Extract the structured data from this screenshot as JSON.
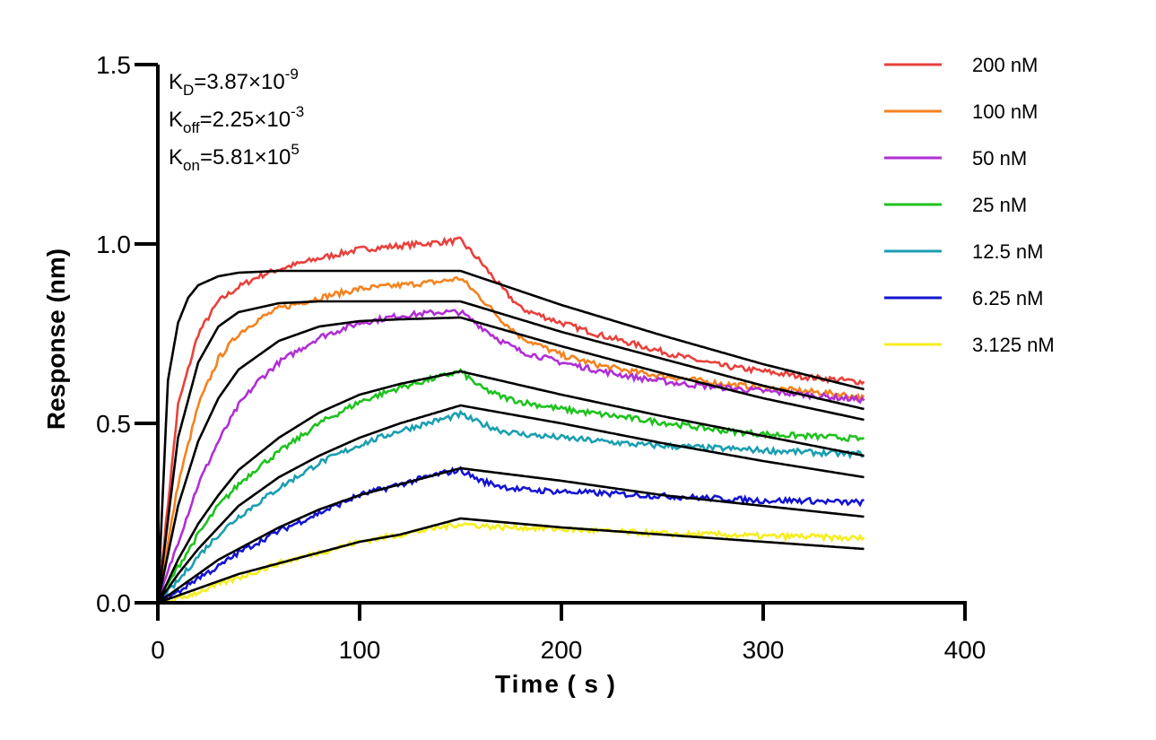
{
  "chart_data": {
    "type": "line",
    "title": "",
    "xlabel": "Time ( s )",
    "ylabel": "Response (nm)",
    "xlim": [
      0,
      400
    ],
    "ylim": [
      0,
      1.5
    ],
    "xticks": [
      "0",
      "100",
      "200",
      "300",
      "400"
    ],
    "yticks": [
      "0.0",
      "0.5",
      "1.0",
      "1.5"
    ],
    "grid": false,
    "legend_position": "top-right",
    "association_end_s": 150,
    "dissociation_end_s": 350,
    "kinetics": {
      "kd": {
        "label": "K",
        "sub": "D",
        "value": "=3.87×10",
        "exp": "-9"
      },
      "koff": {
        "label": "K",
        "sub": "off",
        "value": "=2.25×10",
        "exp": "-3"
      },
      "kon": {
        "label": "K",
        "sub": "on",
        "value": "=5.81×10",
        "exp": "5"
      }
    },
    "series": [
      {
        "name": "200 nM",
        "color": "#e8413c",
        "measured": {
          "x": [
            0,
            10,
            20,
            30,
            40,
            50,
            60,
            80,
            100,
            120,
            140,
            150,
            160,
            170,
            180,
            200,
            220,
            240,
            260,
            280,
            300,
            320,
            340,
            350
          ],
          "y": [
            0,
            0.55,
            0.75,
            0.84,
            0.88,
            0.91,
            0.93,
            0.96,
            0.985,
            0.995,
            1.005,
            1.01,
            0.95,
            0.88,
            0.82,
            0.78,
            0.745,
            0.715,
            0.685,
            0.66,
            0.645,
            0.63,
            0.62,
            0.615
          ]
        },
        "fit": {
          "x": [
            0,
            5,
            10,
            15,
            20,
            30,
            40,
            60,
            80,
            100,
            120,
            150,
            200,
            250,
            300,
            350
          ],
          "y": [
            0,
            0.62,
            0.78,
            0.85,
            0.885,
            0.91,
            0.92,
            0.925,
            0.925,
            0.925,
            0.925,
            0.925,
            0.83,
            0.745,
            0.665,
            0.595
          ]
        }
      },
      {
        "name": "100 nM",
        "color": "#f5821f",
        "measured": {
          "x": [
            0,
            10,
            20,
            30,
            40,
            50,
            60,
            80,
            100,
            120,
            140,
            150,
            160,
            170,
            180,
            200,
            220,
            240,
            260,
            280,
            300,
            320,
            340,
            350
          ],
          "y": [
            0,
            0.33,
            0.55,
            0.68,
            0.75,
            0.79,
            0.82,
            0.85,
            0.875,
            0.885,
            0.895,
            0.905,
            0.85,
            0.79,
            0.74,
            0.69,
            0.66,
            0.64,
            0.625,
            0.61,
            0.6,
            0.59,
            0.58,
            0.57
          ]
        },
        "fit": {
          "x": [
            0,
            10,
            20,
            30,
            40,
            60,
            80,
            100,
            120,
            150,
            200,
            250,
            300,
            350
          ],
          "y": [
            0,
            0.46,
            0.67,
            0.77,
            0.81,
            0.835,
            0.84,
            0.84,
            0.84,
            0.84,
            0.755,
            0.68,
            0.605,
            0.54
          ]
        }
      },
      {
        "name": "50 nM",
        "color": "#b02fd4",
        "measured": {
          "x": [
            0,
            10,
            20,
            30,
            40,
            50,
            60,
            80,
            100,
            120,
            140,
            150,
            160,
            170,
            180,
            200,
            220,
            240,
            260,
            280,
            300,
            320,
            340,
            350
          ],
          "y": [
            0,
            0.17,
            0.33,
            0.45,
            0.55,
            0.62,
            0.67,
            0.74,
            0.78,
            0.8,
            0.81,
            0.81,
            0.77,
            0.73,
            0.7,
            0.67,
            0.645,
            0.625,
            0.61,
            0.6,
            0.59,
            0.58,
            0.57,
            0.565
          ]
        },
        "fit": {
          "x": [
            0,
            10,
            20,
            30,
            40,
            60,
            80,
            100,
            120,
            150,
            200,
            250,
            300,
            350
          ],
          "y": [
            0,
            0.27,
            0.45,
            0.57,
            0.65,
            0.73,
            0.77,
            0.785,
            0.79,
            0.795,
            0.715,
            0.64,
            0.57,
            0.51
          ]
        }
      },
      {
        "name": "25 nM",
        "color": "#1ec21e",
        "measured": {
          "x": [
            0,
            10,
            20,
            30,
            40,
            50,
            60,
            80,
            100,
            120,
            140,
            150,
            160,
            170,
            180,
            200,
            220,
            240,
            260,
            280,
            300,
            320,
            340,
            350
          ],
          "y": [
            0,
            0.1,
            0.19,
            0.27,
            0.33,
            0.38,
            0.42,
            0.5,
            0.56,
            0.6,
            0.63,
            0.645,
            0.6,
            0.575,
            0.56,
            0.54,
            0.525,
            0.51,
            0.495,
            0.48,
            0.47,
            0.465,
            0.46,
            0.455
          ]
        },
        "fit": {
          "x": [
            0,
            10,
            20,
            30,
            40,
            60,
            80,
            100,
            120,
            150,
            200,
            250,
            300,
            350
          ],
          "y": [
            0,
            0.12,
            0.22,
            0.3,
            0.37,
            0.46,
            0.53,
            0.58,
            0.61,
            0.645,
            0.58,
            0.52,
            0.465,
            0.41
          ]
        }
      },
      {
        "name": "12.5 nM",
        "color": "#1a9fb0",
        "measured": {
          "x": [
            0,
            10,
            20,
            30,
            40,
            50,
            60,
            80,
            100,
            120,
            140,
            150,
            160,
            170,
            180,
            200,
            220,
            240,
            260,
            280,
            300,
            320,
            340,
            350
          ],
          "y": [
            0,
            0.06,
            0.13,
            0.19,
            0.24,
            0.28,
            0.32,
            0.39,
            0.44,
            0.48,
            0.51,
            0.525,
            0.5,
            0.48,
            0.47,
            0.46,
            0.45,
            0.44,
            0.435,
            0.43,
            0.425,
            0.42,
            0.415,
            0.415
          ]
        },
        "fit": {
          "x": [
            0,
            10,
            20,
            30,
            40,
            60,
            80,
            100,
            120,
            150,
            200,
            250,
            300,
            350
          ],
          "y": [
            0,
            0.08,
            0.15,
            0.21,
            0.27,
            0.35,
            0.41,
            0.46,
            0.5,
            0.55,
            0.5,
            0.445,
            0.395,
            0.35
          ]
        }
      },
      {
        "name": "6.25 nM",
        "color": "#1414d2",
        "measured": {
          "x": [
            0,
            10,
            20,
            30,
            40,
            50,
            60,
            80,
            100,
            120,
            140,
            150,
            160,
            170,
            180,
            200,
            220,
            240,
            260,
            280,
            300,
            320,
            340,
            350
          ],
          "y": [
            0,
            0.03,
            0.07,
            0.1,
            0.14,
            0.17,
            0.2,
            0.25,
            0.3,
            0.33,
            0.36,
            0.37,
            0.34,
            0.325,
            0.315,
            0.31,
            0.305,
            0.3,
            0.295,
            0.29,
            0.285,
            0.285,
            0.28,
            0.28
          ]
        },
        "fit": {
          "x": [
            0,
            10,
            20,
            30,
            40,
            60,
            80,
            100,
            120,
            150,
            200,
            250,
            300,
            350
          ],
          "y": [
            0,
            0.04,
            0.08,
            0.12,
            0.15,
            0.21,
            0.26,
            0.3,
            0.33,
            0.375,
            0.34,
            0.3,
            0.27,
            0.24
          ]
        }
      },
      {
        "name": "3.125 nM",
        "color": "#f5ee1e",
        "measured": {
          "x": [
            0,
            10,
            20,
            30,
            40,
            50,
            60,
            80,
            100,
            120,
            140,
            150,
            160,
            170,
            180,
            200,
            220,
            240,
            260,
            280,
            300,
            320,
            340,
            350
          ],
          "y": [
            0,
            0.01,
            0.03,
            0.05,
            0.07,
            0.09,
            0.11,
            0.14,
            0.17,
            0.19,
            0.21,
            0.22,
            0.215,
            0.21,
            0.21,
            0.205,
            0.2,
            0.195,
            0.19,
            0.19,
            0.185,
            0.185,
            0.18,
            0.18
          ]
        },
        "fit": {
          "x": [
            0,
            10,
            20,
            30,
            40,
            60,
            80,
            100,
            120,
            150,
            200,
            250,
            300,
            350
          ],
          "y": [
            0,
            0.02,
            0.04,
            0.06,
            0.08,
            0.11,
            0.14,
            0.17,
            0.19,
            0.235,
            0.21,
            0.19,
            0.17,
            0.15
          ]
        }
      }
    ]
  }
}
